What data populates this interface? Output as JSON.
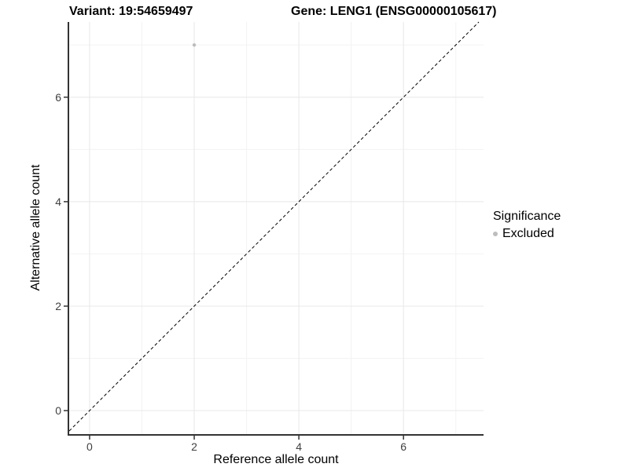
{
  "titles": {
    "left": "Variant: 19:54659497",
    "right": "Gene: LENG1 (ENSG00000105617)"
  },
  "axes": {
    "x": {
      "label": "Reference allele count",
      "tick_labels": [
        "0",
        "2",
        "4",
        "6"
      ]
    },
    "y": {
      "label": "Alternative allele count",
      "tick_labels": [
        "0",
        "2",
        "4",
        "6"
      ]
    }
  },
  "legend": {
    "title": "Significance",
    "items": [
      {
        "label": "Excluded",
        "color": "#bdbdbd",
        "marker": "dot"
      }
    ]
  },
  "chart_data": {
    "type": "scatter",
    "title": "Variant: 19:54659497 / Gene: LENG1 (ENSG00000105617)",
    "xlabel": "Reference allele count",
    "ylabel": "Alternative allele count",
    "xlim": [
      -0.39,
      7.53
    ],
    "ylim": [
      -0.45,
      7.44
    ],
    "x_major_ticks": [
      0,
      2,
      4,
      6
    ],
    "y_major_ticks": [
      0,
      2,
      4,
      6
    ],
    "x_minor_gridlines": [
      1,
      3,
      5,
      7
    ],
    "y_minor_gridlines": [
      1,
      3,
      5,
      7
    ],
    "grid": true,
    "legend_position": "right",
    "series": [
      {
        "name": "Excluded",
        "color": "#bdbdbd",
        "points": [
          [
            2,
            7
          ]
        ]
      }
    ],
    "reference_line": {
      "kind": "identity",
      "style": "dashed",
      "color": "#000000",
      "dash": "4 3"
    }
  },
  "colors": {
    "background": "#ffffff",
    "grid_major": "#e8e8e8",
    "grid_minor": "#f3f3f3",
    "axis_line": "#333333",
    "tick_text": "#404040",
    "title_text": "#000000",
    "point": "#bdbdbd"
  }
}
